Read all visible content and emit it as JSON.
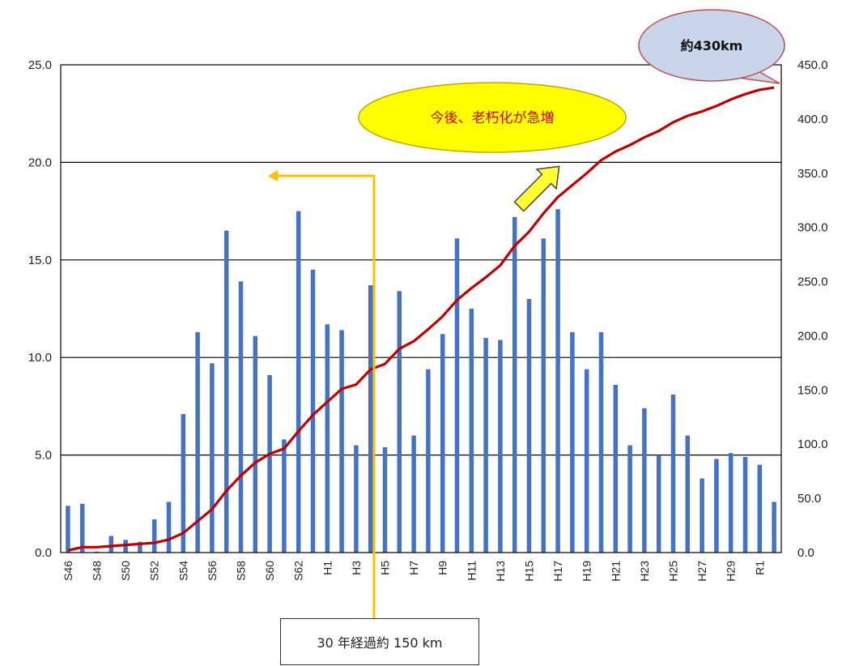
{
  "chart_data": {
    "type": "bar+line",
    "categories": [
      "S46",
      "S47",
      "S48",
      "S49",
      "S50",
      "S51",
      "S52",
      "S53",
      "S54",
      "S55",
      "S56",
      "S57",
      "S58",
      "S59",
      "S60",
      "S61",
      "S62",
      "S63",
      "H1",
      "H2",
      "H3",
      "H4",
      "H5",
      "H6",
      "H7",
      "H8",
      "H9",
      "H10",
      "H11",
      "H12",
      "H13",
      "H14",
      "H15",
      "H16",
      "H17",
      "H18",
      "H19",
      "H20",
      "H21",
      "H22",
      "H23",
      "H24",
      "H25",
      "H26",
      "H27",
      "H28",
      "H29",
      "H30",
      "R1",
      "R2"
    ],
    "x_tick_labels": [
      "S46",
      "S48",
      "S50",
      "S52",
      "S54",
      "S56",
      "S58",
      "S60",
      "S62",
      "H1",
      "H3",
      "H5",
      "H7",
      "H9",
      "H11",
      "H13",
      "H15",
      "H17",
      "H19",
      "H21",
      "H23",
      "H25",
      "H27",
      "H29",
      "R1"
    ],
    "series": [
      {
        "axis": "left",
        "kind": "bar",
        "color": "#4472c4",
        "values": [
          2.4,
          2.5,
          0.05,
          0.85,
          0.65,
          0.55,
          1.7,
          2.6,
          7.1,
          11.3,
          9.7,
          16.5,
          13.9,
          11.1,
          9.1,
          5.8,
          17.5,
          14.5,
          11.7,
          11.4,
          5.5,
          13.7,
          5.4,
          13.4,
          6.0,
          9.4,
          11.2,
          16.1,
          12.5,
          11.0,
          10.9,
          17.2,
          13.0,
          16.1,
          17.6,
          11.3,
          9.4,
          11.3,
          8.6,
          5.5,
          7.4,
          5.0,
          8.1,
          6.0,
          3.8,
          4.8,
          5.1,
          4.9,
          4.5,
          2.6
        ]
      },
      {
        "axis": "right",
        "kind": "line",
        "color": "#c00000",
        "values": [
          2,
          5,
          5,
          6,
          7,
          8,
          9,
          12,
          18,
          29,
          40,
          57,
          71,
          83,
          91,
          96,
          112,
          127,
          139,
          151,
          155,
          169,
          174,
          188,
          195,
          206,
          218,
          233,
          244,
          254,
          265,
          283,
          296,
          313,
          328,
          339,
          350,
          362,
          370,
          376,
          383,
          389,
          397,
          403,
          407,
          412,
          418,
          423,
          427,
          429
        ]
      }
    ],
    "y_left": {
      "min": 0,
      "max": 25,
      "ticks": [
        "0.0",
        "5.0",
        "10.0",
        "15.0",
        "20.0",
        "25.0"
      ]
    },
    "y_right": {
      "min": 0,
      "max": 450,
      "ticks": [
        "0.0",
        "50.0",
        "100.0",
        "150.0",
        "200.0",
        "250.0",
        "300.0",
        "350.0",
        "400.0",
        "450.0"
      ]
    },
    "grid": true,
    "annotations": {
      "callout_total": "約430km",
      "callout_trend": "今後、老朽化が急増",
      "note_30years": "30 年経過約 150 km"
    },
    "annotation_colors": {
      "callout_total_fill": "#c9d5ea",
      "callout_total_border": "#c0504d",
      "callout_trend_fill": "#ffff00",
      "callout_trend_border": "#c9a400",
      "callout_trend_text": "#e00000",
      "trend_arrow_fill": "#ffff33",
      "marker_30yr": "#ffc000"
    }
  }
}
